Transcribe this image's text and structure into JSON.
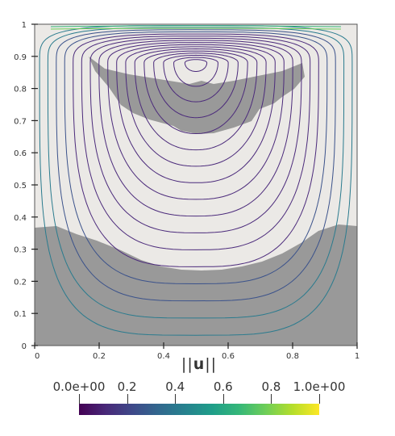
{
  "chart_data": {
    "type": "contour",
    "xlim": [
      0,
      1
    ],
    "ylim": [
      0,
      1
    ],
    "x_ticks": [
      "0",
      "0.2",
      "0.4",
      "0.6",
      "0.8",
      "1"
    ],
    "y_ticks": [
      "0",
      "0.1",
      "0.2",
      "0.3",
      "0.4",
      "0.5",
      "0.6",
      "0.7",
      "0.8",
      "0.9",
      "1"
    ],
    "colorbar": {
      "title_prefix": "||",
      "title_var": "u",
      "title_suffix": "||",
      "range": [
        0,
        1
      ],
      "tick_labels": [
        "0.0e+00",
        "0.2",
        "0.4",
        "0.6",
        "0.8",
        "1.0e+00"
      ],
      "tick_values": [
        0,
        0.2,
        0.4,
        0.6,
        0.8,
        1.0
      ],
      "colormap": "viridis"
    },
    "background_color": "#ebe9e6",
    "shaded_region_color": "#999999",
    "vortex_center": [
      0.5,
      0.88
    ]
  }
}
